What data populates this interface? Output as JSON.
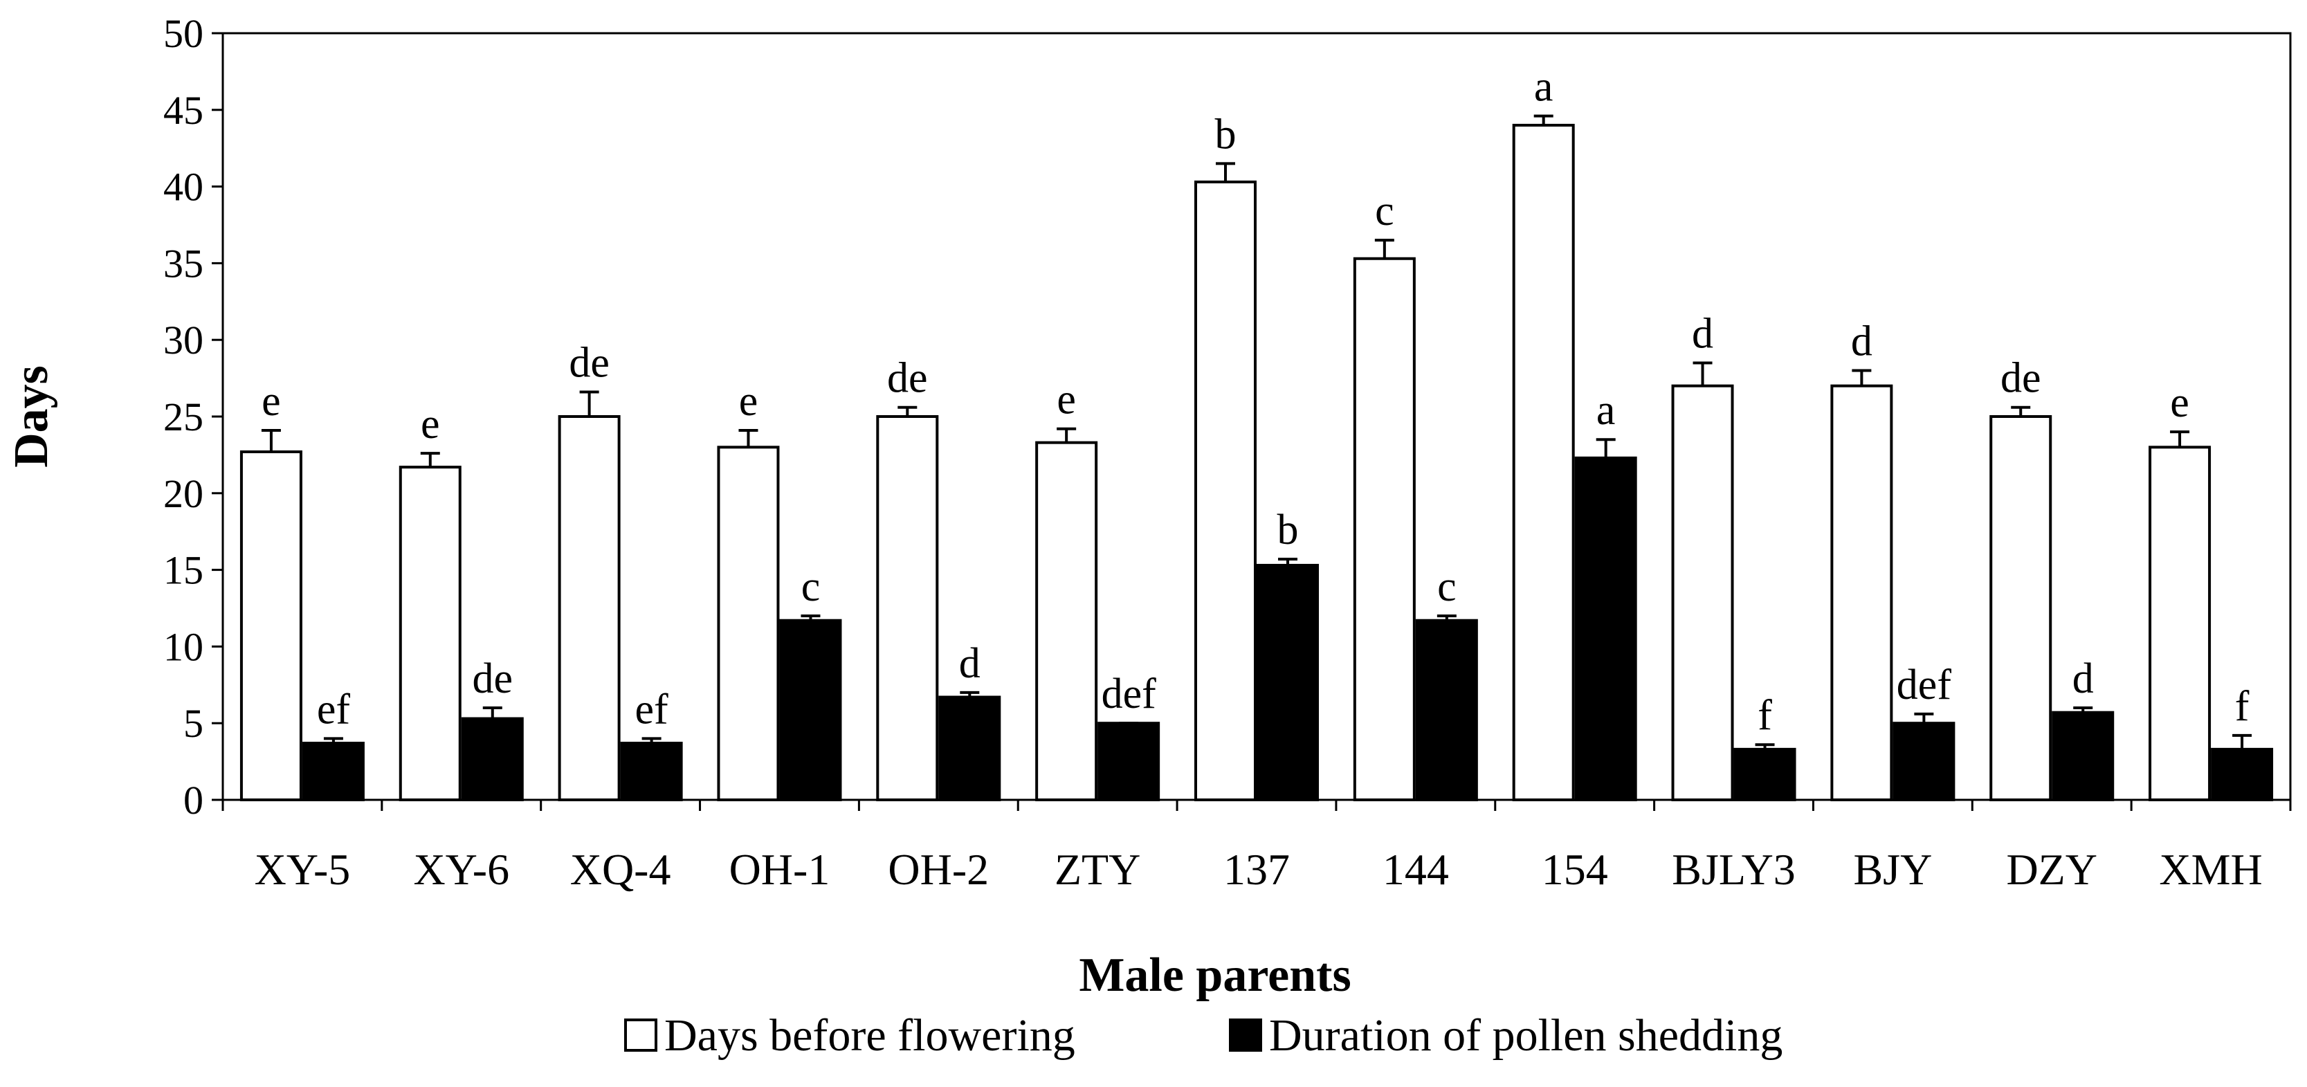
{
  "chart_data": {
    "type": "bar",
    "title": "",
    "xlabel": "Male parents",
    "ylabel": "Days",
    "ylim": [
      0,
      50
    ],
    "ytick_step": 5,
    "grid": false,
    "legend_position": "bottom",
    "categories": [
      "XY-5",
      "XY-6",
      "XQ-4",
      "OH-1",
      "OH-2",
      "ZTY",
      "137",
      "144",
      "154",
      "BJLY3",
      "BJY",
      "DZY",
      "XMH"
    ],
    "series": [
      {
        "name": "Days before flowering",
        "fill": "#ffffff",
        "values": [
          22.7,
          21.7,
          25.0,
          23.0,
          25.0,
          23.3,
          40.3,
          35.3,
          44.0,
          27.0,
          27.0,
          25.0,
          23.0
        ],
        "errors": [
          1.4,
          0.9,
          1.6,
          1.1,
          0.6,
          0.9,
          1.2,
          1.2,
          0.6,
          1.5,
          1.0,
          0.6,
          1.0
        ],
        "labels": [
          "e",
          "e",
          "de",
          "e",
          "de",
          "e",
          "b",
          "c",
          "a",
          "d",
          "d",
          "de",
          "e"
        ]
      },
      {
        "name": "Duration of pollen shedding",
        "fill": "#000000",
        "values": [
          3.7,
          5.3,
          3.7,
          11.7,
          6.7,
          5.0,
          15.3,
          11.7,
          22.3,
          3.3,
          5.0,
          5.7,
          3.3
        ],
        "errors": [
          0.3,
          0.7,
          0.3,
          0.3,
          0.3,
          0.0,
          0.4,
          0.3,
          1.2,
          0.3,
          0.6,
          0.3,
          0.9
        ],
        "labels": [
          "ef",
          "de",
          "ef",
          "c",
          "d",
          "def",
          "b",
          "c",
          "a",
          "f",
          "def",
          "d",
          "f"
        ]
      }
    ]
  }
}
